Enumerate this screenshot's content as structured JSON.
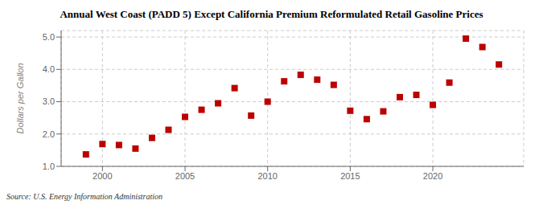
{
  "chart_data": {
    "type": "scatter",
    "title": "Annual West Coast (PADD 5) Except California Premium Reformulated Retail Gasoline Prices",
    "ylabel": "Dollars per Gallon",
    "annotations": [
      "Source: U.S. Energy Information Administration"
    ],
    "x": [
      1999,
      2000,
      2001,
      2002,
      2003,
      2004,
      2005,
      2006,
      2007,
      2008,
      2009,
      2010,
      2011,
      2012,
      2013,
      2014,
      2015,
      2016,
      2017,
      2018,
      2019,
      2020,
      2021,
      2022,
      2023,
      2024
    ],
    "values": [
      1.37,
      1.69,
      1.66,
      1.55,
      1.88,
      2.13,
      2.53,
      2.75,
      2.95,
      3.42,
      2.57,
      3.0,
      3.63,
      3.83,
      3.68,
      3.52,
      2.72,
      2.46,
      2.7,
      3.14,
      3.21,
      2.9,
      3.59,
      4.95,
      4.69,
      4.15
    ],
    "color": "#bb0000",
    "marker": "square",
    "xlim": [
      1997.5,
      2025.5
    ],
    "ylim": [
      1.0,
      5.2
    ],
    "xticks": [
      2000,
      2005,
      2010,
      2015,
      2020
    ],
    "yticks": [
      {
        "value": 1.0,
        "label": "1.0"
      },
      {
        "value": 2.0,
        "label": "2.0"
      },
      {
        "value": 3.0,
        "label": "3.0"
      },
      {
        "value": 4.0,
        "label": "4.0"
      },
      {
        "value": 5.0,
        "label": "5.0"
      }
    ],
    "grid": true
  }
}
